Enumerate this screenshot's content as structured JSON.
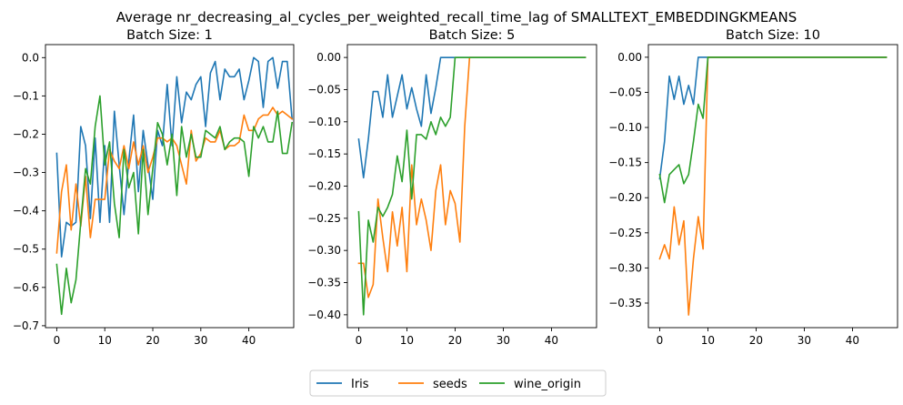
{
  "chart_data": {
    "type": "line",
    "title": "Average nr_decreasing_al_cycles_per_weighted_recall_time_lag of SMALLTEXT_EMBEDDINGKMEANS",
    "series_names": [
      "Iris",
      "seeds",
      "wine_origin"
    ],
    "colors": [
      "#1f77b4",
      "#ff7f0e",
      "#2ca02c"
    ],
    "legend_position": "bottom-center",
    "grid": false,
    "panels": [
      {
        "title": "Batch Size: 1",
        "xlim": [
          -2.35,
          49.35
        ],
        "ylim": [
          -0.705,
          0.034
        ],
        "xticks": [
          0,
          10,
          20,
          30,
          40
        ],
        "yticks": [
          0.0,
          -0.1,
          -0.2,
          -0.3,
          -0.4,
          -0.5,
          -0.6,
          -0.7
        ],
        "ytick_labels": [
          "0.0",
          "−0.1",
          "−0.2",
          "−0.3",
          "−0.4",
          "−0.5",
          "−0.6",
          "−0.7"
        ],
        "series": [
          {
            "name": "Iris",
            "values": [
              -0.25,
              -0.52,
              -0.43,
              -0.44,
              -0.43,
              -0.18,
              -0.23,
              -0.42,
              -0.21,
              -0.43,
              -0.23,
              -0.43,
              -0.14,
              -0.28,
              -0.41,
              -0.27,
              -0.15,
              -0.35,
              -0.19,
              -0.28,
              -0.37,
              -0.19,
              -0.23,
              -0.07,
              -0.23,
              -0.05,
              -0.17,
              -0.09,
              -0.11,
              -0.07,
              -0.05,
              -0.18,
              -0.04,
              -0.01,
              -0.11,
              -0.03,
              -0.05,
              -0.05,
              -0.03,
              -0.11,
              -0.06,
              0.0,
              -0.01,
              -0.13,
              -0.01,
              0.0,
              -0.08,
              -0.01,
              -0.01,
              -0.16
            ]
          },
          {
            "name": "seeds",
            "values": [
              -0.51,
              -0.35,
              -0.28,
              -0.45,
              -0.33,
              -0.44,
              -0.31,
              -0.47,
              -0.37,
              -0.37,
              -0.37,
              -0.24,
              -0.27,
              -0.29,
              -0.23,
              -0.29,
              -0.22,
              -0.28,
              -0.23,
              -0.3,
              -0.26,
              -0.21,
              -0.21,
              -0.22,
              -0.21,
              -0.23,
              -0.28,
              -0.33,
              -0.19,
              -0.27,
              -0.25,
              -0.21,
              -0.22,
              -0.22,
              -0.19,
              -0.24,
              -0.23,
              -0.23,
              -0.22,
              -0.15,
              -0.19,
              -0.19,
              -0.16,
              -0.15,
              -0.15,
              -0.13,
              -0.15,
              -0.14,
              -0.15,
              -0.16
            ]
          },
          {
            "name": "wine_origin",
            "values": [
              -0.54,
              -0.67,
              -0.55,
              -0.64,
              -0.58,
              -0.43,
              -0.29,
              -0.33,
              -0.18,
              -0.1,
              -0.28,
              -0.22,
              -0.38,
              -0.47,
              -0.24,
              -0.34,
              -0.3,
              -0.46,
              -0.24,
              -0.41,
              -0.29,
              -0.17,
              -0.2,
              -0.28,
              -0.2,
              -0.36,
              -0.18,
              -0.26,
              -0.2,
              -0.26,
              -0.26,
              -0.19,
              -0.2,
              -0.21,
              -0.18,
              -0.24,
              -0.22,
              -0.21,
              -0.21,
              -0.22,
              -0.31,
              -0.18,
              -0.21,
              -0.18,
              -0.22,
              -0.22,
              -0.14,
              -0.25,
              -0.25,
              -0.17
            ]
          }
        ]
      },
      {
        "title": "Batch Size: 5",
        "xlim": [
          -2.35,
          49.35
        ],
        "ylim": [
          -0.42,
          0.02
        ],
        "xticks": [
          0,
          10,
          20,
          30,
          40
        ],
        "yticks": [
          0.0,
          -0.05,
          -0.1,
          -0.15,
          -0.2,
          -0.25,
          -0.3,
          -0.35,
          -0.4
        ],
        "ytick_labels": [
          "0.00",
          "−0.05",
          "−0.10",
          "−0.15",
          "−0.20",
          "−0.25",
          "−0.30",
          "−0.35",
          "−0.40"
        ],
        "series": [
          {
            "name": "Iris",
            "values": [
              -0.127,
              -0.187,
              -0.127,
              -0.053,
              -0.053,
              -0.093,
              -0.027,
              -0.093,
              -0.06,
              -0.027,
              -0.08,
              -0.047,
              -0.08,
              -0.107,
              -0.027,
              -0.087,
              -0.047,
              0.0,
              0.0,
              0.0,
              0.0,
              0.0,
              0.0,
              0.0,
              0.0,
              0.0,
              0.0,
              0.0,
              0.0,
              0.0,
              0.0,
              0.0,
              0.0,
              0.0,
              0.0,
              0.0,
              0.0,
              0.0,
              0.0,
              0.0,
              0.0,
              0.0,
              0.0,
              0.0,
              0.0,
              0.0,
              0.0,
              0.0
            ]
          },
          {
            "name": "seeds",
            "values": [
              -0.32,
              -0.32,
              -0.373,
              -0.353,
              -0.22,
              -0.28,
              -0.333,
              -0.24,
              -0.293,
              -0.233,
              -0.333,
              -0.167,
              -0.26,
              -0.22,
              -0.253,
              -0.3,
              -0.207,
              -0.167,
              -0.26,
              -0.207,
              -0.227,
              -0.287,
              -0.107,
              0.0,
              0.0,
              0.0,
              0.0,
              0.0,
              0.0,
              0.0,
              0.0,
              0.0,
              0.0,
              0.0,
              0.0,
              0.0,
              0.0,
              0.0,
              0.0,
              0.0,
              0.0,
              0.0,
              0.0,
              0.0,
              0.0,
              0.0,
              0.0,
              0.0
            ]
          },
          {
            "name": "wine_origin",
            "values": [
              -0.24,
              -0.4,
              -0.253,
              -0.287,
              -0.233,
              -0.247,
              -0.233,
              -0.213,
              -0.153,
              -0.193,
              -0.113,
              -0.22,
              -0.12,
              -0.12,
              -0.127,
              -0.1,
              -0.12,
              -0.093,
              -0.107,
              -0.093,
              0.0,
              0.0,
              0.0,
              0.0,
              0.0,
              0.0,
              0.0,
              0.0,
              0.0,
              0.0,
              0.0,
              0.0,
              0.0,
              0.0,
              0.0,
              0.0,
              0.0,
              0.0,
              0.0,
              0.0,
              0.0,
              0.0,
              0.0,
              0.0,
              0.0,
              0.0,
              0.0,
              0.0
            ]
          }
        ]
      },
      {
        "title": "Batch Size: 10",
        "xlim": [
          -2.35,
          49.35
        ],
        "ylim": [
          -0.385,
          0.018
        ],
        "xticks": [
          0,
          10,
          20,
          30,
          40
        ],
        "yticks": [
          0.0,
          -0.05,
          -0.1,
          -0.15,
          -0.2,
          -0.25,
          -0.3,
          -0.35
        ],
        "ytick_labels": [
          "0.00",
          "−0.05",
          "−0.10",
          "−0.15",
          "−0.20",
          "−0.25",
          "−0.30",
          "−0.35"
        ],
        "series": [
          {
            "name": "Iris",
            "values": [
              -0.173,
              -0.12,
              -0.027,
              -0.06,
              -0.027,
              -0.067,
              -0.04,
              -0.067,
              0.0,
              0.0,
              0.0,
              0.0,
              0.0,
              0.0,
              0.0,
              0.0,
              0.0,
              0.0,
              0.0,
              0.0,
              0.0,
              0.0,
              0.0,
              0.0,
              0.0,
              0.0,
              0.0,
              0.0,
              0.0,
              0.0,
              0.0,
              0.0,
              0.0,
              0.0,
              0.0,
              0.0,
              0.0,
              0.0,
              0.0,
              0.0,
              0.0,
              0.0,
              0.0,
              0.0,
              0.0,
              0.0,
              0.0,
              0.0
            ]
          },
          {
            "name": "seeds",
            "values": [
              -0.287,
              -0.267,
              -0.287,
              -0.213,
              -0.267,
              -0.233,
              -0.367,
              -0.287,
              -0.227,
              -0.273,
              0.0,
              0.0,
              0.0,
              0.0,
              0.0,
              0.0,
              0.0,
              0.0,
              0.0,
              0.0,
              0.0,
              0.0,
              0.0,
              0.0,
              0.0,
              0.0,
              0.0,
              0.0,
              0.0,
              0.0,
              0.0,
              0.0,
              0.0,
              0.0,
              0.0,
              0.0,
              0.0,
              0.0,
              0.0,
              0.0,
              0.0,
              0.0,
              0.0,
              0.0,
              0.0,
              0.0,
              0.0,
              0.0
            ]
          },
          {
            "name": "wine_origin",
            "values": [
              -0.167,
              -0.207,
              -0.167,
              -0.16,
              -0.153,
              -0.18,
              -0.167,
              -0.12,
              -0.067,
              -0.087,
              0.0,
              0.0,
              0.0,
              0.0,
              0.0,
              0.0,
              0.0,
              0.0,
              0.0,
              0.0,
              0.0,
              0.0,
              0.0,
              0.0,
              0.0,
              0.0,
              0.0,
              0.0,
              0.0,
              0.0,
              0.0,
              0.0,
              0.0,
              0.0,
              0.0,
              0.0,
              0.0,
              0.0,
              0.0,
              0.0,
              0.0,
              0.0,
              0.0,
              0.0,
              0.0,
              0.0,
              0.0,
              0.0
            ]
          }
        ]
      }
    ]
  }
}
